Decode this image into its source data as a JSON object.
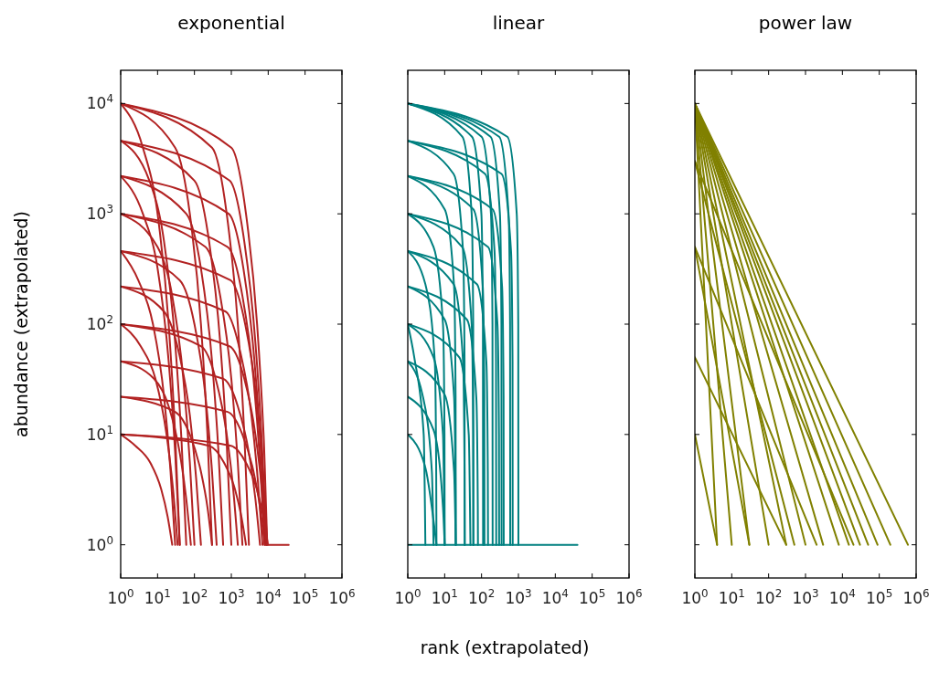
{
  "chart_data": [
    {
      "type": "line",
      "title": "exponential",
      "ylabel": "abundance (extrapolated)",
      "log": "xy",
      "xlim": [
        1,
        1000000
      ],
      "ylim": [
        0.5,
        20000
      ],
      "xticks": [
        {
          "value": 1,
          "label": "10$^{0}$"
        },
        {
          "value": 10,
          "label": "10$^{1}$"
        },
        {
          "value": 100,
          "label": "10$^{2}$"
        },
        {
          "value": 1000,
          "label": "10$^{3}$"
        },
        {
          "value": 10000,
          "label": "10$^{4}$"
        },
        {
          "value": 100000,
          "label": "10$^{5}$"
        },
        {
          "value": 1000000,
          "label": "10$^{6}$"
        }
      ],
      "yticks": [
        {
          "value": 1,
          "label": "10$^{0}$"
        },
        {
          "value": 10,
          "label": "10$^{1}$"
        },
        {
          "value": 100,
          "label": "10$^{2}$"
        },
        {
          "value": 1000,
          "label": "10$^{3}$"
        },
        {
          "value": 10000,
          "label": "10$^{4}$"
        }
      ],
      "series": [
        {
          "color": "#b22222",
          "x": [
            1,
            1000,
            2500,
            5000,
            7500,
            10000,
            36000
          ],
          "values": [
            10000,
            3981,
            1000,
            100,
            10,
            1,
            1
          ]
        },
        {
          "color": "#b22222",
          "x": [
            1,
            300,
            750,
            1500,
            2250,
            3000
          ],
          "values": [
            10000,
            3981,
            1000,
            100,
            10,
            1
          ]
        },
        {
          "color": "#b22222",
          "x": [
            1,
            30,
            75,
            150,
            225,
            300
          ],
          "values": [
            10000,
            3981,
            1000,
            100,
            10,
            1
          ]
        },
        {
          "color": "#b22222",
          "x": [
            1,
            4,
            10,
            20,
            30,
            40
          ],
          "values": [
            10000,
            3981,
            1000,
            100,
            10,
            1
          ]
        },
        {
          "color": "#b22222",
          "x": [
            1,
            900,
            2250,
            4500,
            6750,
            9000
          ],
          "values": [
            4600,
            2000,
            560,
            68,
            8.3,
            1
          ]
        },
        {
          "color": "#b22222",
          "x": [
            1,
            100,
            250,
            500,
            750,
            1000
          ],
          "values": [
            4600,
            2000,
            560,
            68,
            8.3,
            1
          ]
        },
        {
          "color": "#b22222",
          "x": [
            1,
            6,
            15,
            30,
            45,
            60
          ],
          "values": [
            4600,
            2000,
            560,
            68,
            8.3,
            1
          ]
        },
        {
          "color": "#b22222",
          "x": [
            1,
            850,
            2125,
            4250,
            6375,
            8500
          ],
          "values": [
            2200,
            1000,
            320,
            46,
            6.8,
            1
          ]
        },
        {
          "color": "#b22222",
          "x": [
            1,
            60,
            150,
            300,
            450,
            600
          ],
          "values": [
            2200,
            1000,
            320,
            46,
            6.8,
            1
          ]
        },
        {
          "color": "#b22222",
          "x": [
            1,
            4,
            10,
            20,
            30,
            40
          ],
          "values": [
            2200,
            1000,
            320,
            46,
            6.8,
            1
          ]
        },
        {
          "color": "#b22222",
          "x": [
            1,
            800,
            2000,
            4000,
            6000,
            8000
          ],
          "values": [
            1000,
            500,
            180,
            32,
            5.6,
            1
          ]
        },
        {
          "color": "#b22222",
          "x": [
            1,
            200,
            500,
            1000,
            1500,
            2000
          ],
          "values": [
            1000,
            500,
            180,
            32,
            5.6,
            1
          ]
        },
        {
          "color": "#b22222",
          "x": [
            1,
            10,
            25,
            50,
            75,
            100
          ],
          "values": [
            1000,
            500,
            180,
            32,
            5.6,
            1
          ]
        },
        {
          "color": "#b22222",
          "x": [
            1,
            950,
            2375,
            4750,
            7125,
            9500
          ],
          "values": [
            460,
            250,
            100,
            22,
            4.6,
            1
          ]
        },
        {
          "color": "#b22222",
          "x": [
            1,
            40,
            100,
            200,
            300,
            400
          ],
          "values": [
            460,
            250,
            100,
            22,
            4.6,
            1
          ]
        },
        {
          "color": "#b22222",
          "x": [
            1,
            3,
            7.5,
            15,
            22.5,
            30
          ],
          "values": [
            460,
            250,
            100,
            22,
            4.6,
            1
          ]
        },
        {
          "color": "#b22222",
          "x": [
            1,
            700,
            1750,
            3500,
            5250,
            7000
          ],
          "values": [
            220,
            130,
            56,
            15,
            3.8,
            1
          ]
        },
        {
          "color": "#b22222",
          "x": [
            1,
            15,
            37.5,
            75,
            112.5,
            150
          ],
          "values": [
            220,
            130,
            56,
            15,
            3.8,
            1
          ]
        },
        {
          "color": "#b22222",
          "x": [
            1,
            900,
            2250,
            4500,
            6750,
            9000
          ],
          "values": [
            100,
            63,
            32,
            10,
            3.2,
            1
          ]
        },
        {
          "color": "#b22222",
          "x": [
            1,
            150,
            375,
            750,
            1125,
            1500
          ],
          "values": [
            100,
            63,
            32,
            10,
            3.2,
            1
          ]
        },
        {
          "color": "#b22222",
          "x": [
            1,
            3.5,
            8.75,
            17.5,
            26.25,
            35
          ],
          "values": [
            100,
            63,
            32,
            10,
            3.2,
            1
          ]
        },
        {
          "color": "#b22222",
          "x": [
            1,
            600,
            1500,
            3000,
            4500,
            6000
          ],
          "values": [
            46,
            32,
            18,
            6.8,
            2.6,
            1
          ]
        },
        {
          "color": "#b22222",
          "x": [
            1,
            8,
            20,
            40,
            60,
            80
          ],
          "values": [
            46,
            32,
            18,
            6.8,
            2.6,
            1
          ]
        },
        {
          "color": "#b22222",
          "x": [
            1,
            800,
            2000,
            4000,
            6000,
            8000
          ],
          "values": [
            22,
            16,
            10,
            4.6,
            2.2,
            1
          ]
        },
        {
          "color": "#b22222",
          "x": [
            1,
            30,
            75,
            150,
            225,
            300
          ],
          "values": [
            22,
            16,
            10,
            4.6,
            2.2,
            1
          ]
        },
        {
          "color": "#b22222",
          "x": [
            1,
            980,
            2450,
            4900,
            7350,
            9800
          ],
          "values": [
            10,
            7.9,
            5.6,
            3.2,
            1.8,
            1
          ]
        },
        {
          "color": "#b22222",
          "x": [
            1,
            250,
            625,
            1250,
            1875,
            2500
          ],
          "values": [
            10,
            7.9,
            5.6,
            3.2,
            1.8,
            1
          ]
        },
        {
          "color": "#b22222",
          "x": [
            1,
            2.5,
            6.25,
            12.5,
            18.75,
            25
          ],
          "values": [
            10,
            7.9,
            5.6,
            3.2,
            1.8,
            1
          ]
        }
      ]
    },
    {
      "type": "line",
      "title": "linear",
      "xlabel": "rank (extrapolated)",
      "log": "xy",
      "xlim": [
        1,
        1000000
      ],
      "ylim": [
        0.5,
        20000
      ],
      "tick_labels": "x",
      "xticks": [
        {
          "value": 1,
          "label": "10$^{0}$"
        },
        {
          "value": 10,
          "label": "10$^{1}$"
        },
        {
          "value": 100,
          "label": "10$^{2}$"
        },
        {
          "value": 1000,
          "label": "10$^{3}$"
        },
        {
          "value": 10000,
          "label": "10$^{4}$"
        },
        {
          "value": 100000,
          "label": "10$^{5}$"
        },
        {
          "value": 1000000,
          "label": "10$^{6}$"
        }
      ],
      "yticks": [
        {
          "value": 1,
          "label": null
        },
        {
          "value": 10,
          "label": null
        },
        {
          "value": 100,
          "label": null
        },
        {
          "value": 1000,
          "label": null
        },
        {
          "value": 10000,
          "label": null
        }
      ],
      "series": [
        {
          "color": "#008080",
          "x": [
            1,
            40000
          ],
          "values": [
            1,
            1
          ]
        },
        {
          "color": "#008080",
          "x": [
            1,
            500,
            900,
            990,
            1000
          ],
          "values": [
            10000,
            5000,
            1000,
            100,
            1
          ]
        },
        {
          "color": "#008080",
          "x": [
            1,
            300,
            540,
            594,
            600
          ],
          "values": [
            10000,
            5000,
            1000,
            100,
            1
          ]
        },
        {
          "color": "#008080",
          "x": [
            1,
            175,
            315,
            346,
            350
          ],
          "values": [
            10000,
            5000,
            1000,
            100,
            1
          ]
        },
        {
          "color": "#008080",
          "x": [
            1,
            100,
            180,
            198,
            200
          ],
          "values": [
            10000,
            5000,
            1000,
            100,
            1
          ]
        },
        {
          "color": "#008080",
          "x": [
            1,
            55,
            99,
            109,
            110
          ],
          "values": [
            10000,
            5000,
            1000,
            100,
            1
          ]
        },
        {
          "color": "#008080",
          "x": [
            1,
            30,
            54,
            59.4,
            60
          ],
          "values": [
            10000,
            5000,
            1000,
            100,
            1
          ]
        },
        {
          "color": "#008080",
          "x": [
            1,
            350,
            630,
            693,
            700
          ],
          "values": [
            4600,
            2300,
            460,
            46,
            1
          ]
        },
        {
          "color": "#008080",
          "x": [
            1,
            125,
            225,
            247,
            250
          ],
          "values": [
            4600,
            2300,
            460,
            46,
            1
          ]
        },
        {
          "color": "#008080",
          "x": [
            1,
            17.5,
            31.5,
            34.6,
            35
          ],
          "values": [
            4600,
            2300,
            460,
            46,
            1
          ]
        },
        {
          "color": "#008080",
          "x": [
            1,
            200,
            360,
            396,
            400
          ],
          "values": [
            2200,
            1100,
            220,
            22,
            1
          ]
        },
        {
          "color": "#008080",
          "x": [
            1,
            60,
            108,
            119,
            120
          ],
          "values": [
            2200,
            1100,
            220,
            22,
            1
          ]
        },
        {
          "color": "#008080",
          "x": [
            1,
            10,
            18,
            19.8,
            20
          ],
          "values": [
            2200,
            1100,
            220,
            22,
            1
          ]
        },
        {
          "color": "#008080",
          "x": [
            1,
            150,
            270,
            297,
            300
          ],
          "values": [
            1000,
            500,
            100,
            10,
            1
          ]
        },
        {
          "color": "#008080",
          "x": [
            1,
            30,
            54,
            59.4,
            60
          ],
          "values": [
            1000,
            500,
            100,
            10,
            1
          ]
        },
        {
          "color": "#008080",
          "x": [
            1,
            5,
            9,
            9.9,
            10
          ],
          "values": [
            1000,
            500,
            100,
            10,
            1
          ]
        },
        {
          "color": "#008080",
          "x": [
            1,
            75,
            135,
            148,
            150
          ],
          "values": [
            460,
            230,
            46,
            4.6,
            1
          ]
        },
        {
          "color": "#008080",
          "x": [
            1,
            17.5,
            31.5,
            34.6,
            35
          ],
          "values": [
            460,
            230,
            46,
            4.6,
            1
          ]
        },
        {
          "color": "#008080",
          "x": [
            1,
            3,
            5.4,
            5.9,
            6
          ],
          "values": [
            460,
            230,
            46,
            4.6,
            1
          ]
        },
        {
          "color": "#008080",
          "x": [
            1,
            40,
            72,
            79.2,
            80
          ],
          "values": [
            220,
            110,
            22,
            2.2,
            1
          ]
        },
        {
          "color": "#008080",
          "x": [
            1,
            10,
            18,
            19.8,
            20
          ],
          "values": [
            220,
            110,
            22,
            2.2,
            1
          ]
        },
        {
          "color": "#008080",
          "x": [
            1,
            25,
            45,
            50
          ],
          "values": [
            100,
            50,
            10,
            1
          ]
        },
        {
          "color": "#008080",
          "x": [
            1,
            5,
            9,
            10
          ],
          "values": [
            100,
            50,
            10,
            1
          ]
        },
        {
          "color": "#008080",
          "x": [
            1,
            1.5,
            2.7,
            3
          ],
          "values": [
            100,
            50,
            10,
            1
          ]
        },
        {
          "color": "#008080",
          "x": [
            1,
            10,
            18,
            20
          ],
          "values": [
            46,
            23,
            4.6,
            1
          ]
        },
        {
          "color": "#008080",
          "x": [
            1,
            2.5,
            4.5,
            5
          ],
          "values": [
            46,
            23,
            4.6,
            1
          ]
        },
        {
          "color": "#008080",
          "x": [
            1,
            5,
            9,
            10
          ],
          "values": [
            22,
            11,
            2.2,
            1
          ]
        },
        {
          "color": "#008080",
          "x": [
            1,
            3,
            6
          ],
          "values": [
            10,
            5,
            1
          ]
        }
      ]
    },
    {
      "type": "line",
      "title": "power law",
      "log": "xy",
      "xlim": [
        1,
        1000000
      ],
      "ylim": [
        0.5,
        20000
      ],
      "tick_labels": "x",
      "xticks": [
        {
          "value": 1,
          "label": "10$^{0}$"
        },
        {
          "value": 10,
          "label": "10$^{1}$"
        },
        {
          "value": 100,
          "label": "10$^{2}$"
        },
        {
          "value": 1000,
          "label": "10$^{3}$"
        },
        {
          "value": 10000,
          "label": "10$^{4}$"
        },
        {
          "value": 100000,
          "label": "10$^{5}$"
        },
        {
          "value": 1000000,
          "label": "10$^{6}$"
        }
      ],
      "yticks": [
        {
          "value": 1,
          "label": null
        },
        {
          "value": 10,
          "label": null
        },
        {
          "value": 100,
          "label": null
        },
        {
          "value": 1000,
          "label": null
        },
        {
          "value": 10000,
          "label": null
        }
      ],
      "series": [
        {
          "color": "#808000",
          "x": [
            1,
            600000
          ],
          "values": [
            10000,
            1
          ]
        },
        {
          "color": "#808000",
          "x": [
            1,
            200000
          ],
          "values": [
            10000,
            1
          ]
        },
        {
          "color": "#808000",
          "x": [
            1,
            90000
          ],
          "values": [
            10000,
            1
          ]
        },
        {
          "color": "#808000",
          "x": [
            1,
            50000
          ],
          "values": [
            10000,
            1
          ]
        },
        {
          "color": "#808000",
          "x": [
            1,
            30000
          ],
          "values": [
            10000,
            1
          ]
        },
        {
          "color": "#808000",
          "x": [
            1,
            15000
          ],
          "values": [
            10000,
            1
          ]
        },
        {
          "color": "#808000",
          "x": [
            1,
            8000
          ],
          "values": [
            10000,
            1
          ]
        },
        {
          "color": "#808000",
          "x": [
            1,
            3000
          ],
          "values": [
            10000,
            1
          ]
        },
        {
          "color": "#808000",
          "x": [
            1,
            1000
          ],
          "values": [
            10000,
            1
          ]
        },
        {
          "color": "#808000",
          "x": [
            1,
            300
          ],
          "values": [
            10000,
            1
          ]
        },
        {
          "color": "#808000",
          "x": [
            1,
            100
          ],
          "values": [
            10000,
            1
          ]
        },
        {
          "color": "#808000",
          "x": [
            1,
            30
          ],
          "values": [
            10000,
            1
          ]
        },
        {
          "color": "#808000",
          "x": [
            1,
            10
          ],
          "values": [
            10000,
            1
          ]
        },
        {
          "color": "#808000",
          "x": [
            1,
            4
          ],
          "values": [
            10000,
            1
          ]
        },
        {
          "color": "#808000",
          "x": [
            1,
            20000
          ],
          "values": [
            3000,
            1
          ]
        },
        {
          "color": "#808000",
          "x": [
            1,
            500
          ],
          "values": [
            3000,
            1
          ]
        },
        {
          "color": "#808000",
          "x": [
            1,
            2000
          ],
          "values": [
            500,
            1
          ]
        },
        {
          "color": "#808000",
          "x": [
            1,
            30
          ],
          "values": [
            500,
            1
          ]
        },
        {
          "color": "#808000",
          "x": [
            1,
            300
          ],
          "values": [
            50,
            1
          ]
        },
        {
          "color": "#808000",
          "x": [
            1,
            4
          ],
          "values": [
            10,
            1
          ]
        }
      ]
    }
  ]
}
